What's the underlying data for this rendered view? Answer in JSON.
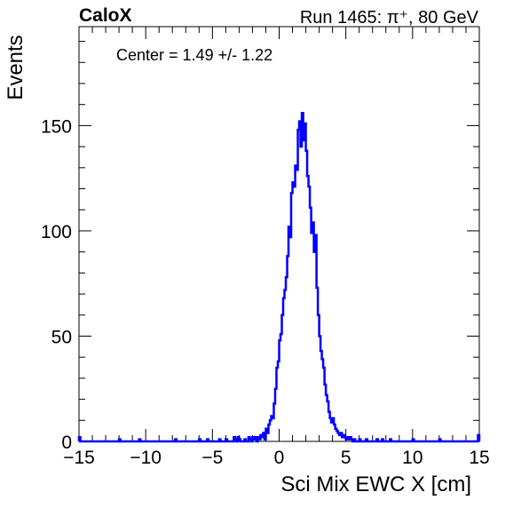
{
  "chart_data": {
    "type": "histogram",
    "title_left": "CaloX",
    "title_right": "Run 1465: π⁺, 80 GeV",
    "xlabel": "Sci Mix EWC X [cm]",
    "ylabel": "Events",
    "annotation": "Center = 1.49 +/- 1.22",
    "xlim": [
      -15,
      15
    ],
    "ylim": [
      0,
      197
    ],
    "x_ticks": [
      "−15",
      "−10",
      "−5",
      "0",
      "5",
      "10",
      "15"
    ],
    "x_tick_values": [
      -15,
      -10,
      -5,
      0,
      5,
      10,
      15
    ],
    "y_ticks": [
      "0",
      "50",
      "100",
      "150"
    ],
    "y_tick_values": [
      0,
      50,
      100,
      150
    ],
    "grid": false,
    "series": [
      {
        "color": "#0000ff",
        "bin_width": 0.1,
        "bin_start": -15,
        "points": [
          [
            -15.0,
            2
          ],
          [
            -14.9,
            0
          ],
          [
            -12.0,
            1
          ],
          [
            -11.9,
            0
          ],
          [
            -10.5,
            1
          ],
          [
            -10.4,
            0
          ],
          [
            -7.8,
            1
          ],
          [
            -7.7,
            0
          ],
          [
            -6.0,
            1
          ],
          [
            -5.9,
            0
          ],
          [
            -5.4,
            1
          ],
          [
            -5.3,
            0
          ],
          [
            -4.5,
            1
          ],
          [
            -4.4,
            0
          ],
          [
            -4.0,
            1
          ],
          [
            -3.9,
            0
          ],
          [
            -3.4,
            2
          ],
          [
            -3.3,
            1
          ],
          [
            -3.2,
            0
          ],
          [
            -3.1,
            2
          ],
          [
            -3.0,
            1
          ],
          [
            -2.9,
            0
          ],
          [
            -2.6,
            1
          ],
          [
            -2.5,
            0
          ],
          [
            -2.3,
            2
          ],
          [
            -2.2,
            1
          ],
          [
            -2.1,
            0
          ],
          [
            -2.0,
            2
          ],
          [
            -1.9,
            1
          ],
          [
            -1.8,
            2
          ],
          [
            -1.7,
            0
          ],
          [
            -1.6,
            2
          ],
          [
            -1.5,
            1
          ],
          [
            -1.4,
            3
          ],
          [
            -1.3,
            2
          ],
          [
            -1.2,
            4
          ],
          [
            -1.1,
            1
          ],
          [
            -1.0,
            6
          ],
          [
            -0.9,
            4
          ],
          [
            -0.8,
            8
          ],
          [
            -0.7,
            10
          ],
          [
            -0.6,
            12
          ],
          [
            -0.5,
            11
          ],
          [
            -0.4,
            18
          ],
          [
            -0.3,
            25
          ],
          [
            -0.2,
            35
          ],
          [
            -0.1,
            38
          ],
          [
            0.0,
            48
          ],
          [
            0.1,
            51
          ],
          [
            0.2,
            60
          ],
          [
            0.3,
            68
          ],
          [
            0.4,
            72
          ],
          [
            0.5,
            78
          ],
          [
            0.6,
            88
          ],
          [
            0.7,
            102
          ],
          [
            0.8,
            97
          ],
          [
            0.9,
            118
          ],
          [
            1.0,
            123
          ],
          [
            1.1,
            121
          ],
          [
            1.2,
            131
          ],
          [
            1.3,
            129
          ],
          [
            1.4,
            148
          ],
          [
            1.5,
            152
          ],
          [
            1.6,
            140
          ],
          [
            1.7,
            156
          ],
          [
            1.8,
            143
          ],
          [
            1.9,
            151
          ],
          [
            2.0,
            138
          ],
          [
            2.1,
            126
          ],
          [
            2.2,
            121
          ],
          [
            2.3,
            111
          ],
          [
            2.4,
            99
          ],
          [
            2.5,
            104
          ],
          [
            2.6,
            90
          ],
          [
            2.7,
            98
          ],
          [
            2.8,
            73
          ],
          [
            2.9,
            60
          ],
          [
            3.0,
            50
          ],
          [
            3.1,
            43
          ],
          [
            3.2,
            39
          ],
          [
            3.3,
            35
          ],
          [
            3.4,
            27
          ],
          [
            3.5,
            22
          ],
          [
            3.6,
            19
          ],
          [
            3.7,
            14
          ],
          [
            3.8,
            11
          ],
          [
            3.9,
            9
          ],
          [
            4.0,
            11
          ],
          [
            4.1,
            8
          ],
          [
            4.2,
            6
          ],
          [
            4.3,
            5
          ],
          [
            4.4,
            4
          ],
          [
            4.5,
            3
          ],
          [
            4.6,
            4
          ],
          [
            4.7,
            2
          ],
          [
            4.8,
            3
          ],
          [
            4.9,
            2
          ],
          [
            5.0,
            1
          ],
          [
            5.1,
            2
          ],
          [
            5.2,
            1
          ],
          [
            5.3,
            2
          ],
          [
            5.4,
            1
          ],
          [
            5.5,
            0
          ],
          [
            5.6,
            1
          ],
          [
            5.7,
            0
          ],
          [
            6.0,
            1
          ],
          [
            6.1,
            0
          ],
          [
            6.5,
            1
          ],
          [
            6.6,
            0
          ],
          [
            7.3,
            1
          ],
          [
            7.4,
            0
          ],
          [
            7.7,
            1
          ],
          [
            7.8,
            0
          ],
          [
            8.3,
            1
          ],
          [
            8.4,
            0
          ],
          [
            10.0,
            1
          ],
          [
            10.1,
            0
          ],
          [
            12.0,
            1
          ],
          [
            12.1,
            0
          ],
          [
            14.9,
            3
          ]
        ]
      }
    ]
  }
}
